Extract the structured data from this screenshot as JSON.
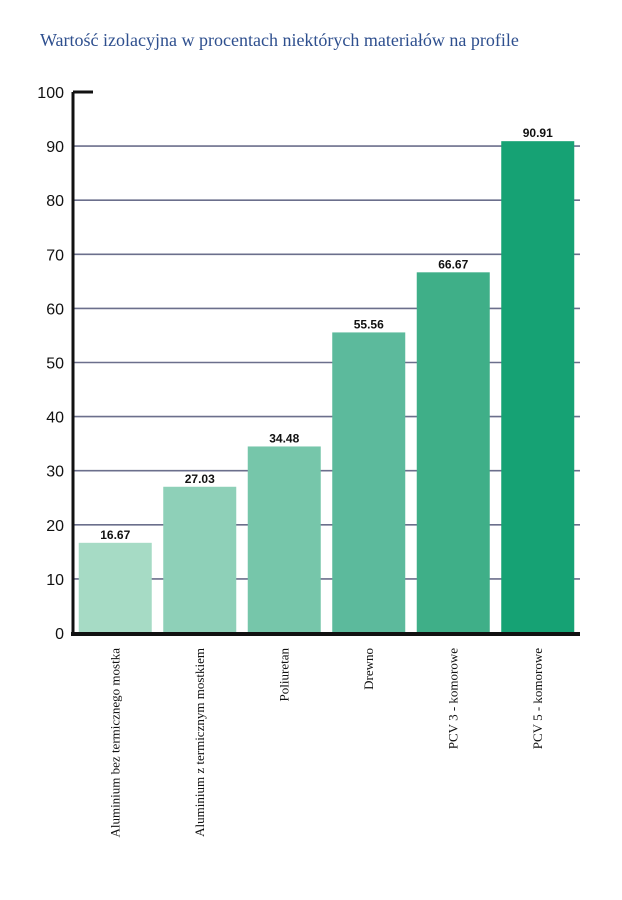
{
  "chart_data": {
    "type": "bar",
    "title": "Wartość izolacyjna w procentach niektórych materiałów na profile",
    "categories": [
      "Aluminium bez termicznego mostka",
      "Aluminium z termicznym mostkiem",
      "Poliuretan",
      "Drewno",
      "PCV 3 - komorowe",
      "PCV 5 - komorowe"
    ],
    "values": [
      16.67,
      27.03,
      34.48,
      55.56,
      66.67,
      90.91
    ],
    "value_labels": [
      "16.67",
      "27.03",
      "34.48",
      "55.56",
      "66.67",
      "90.91"
    ],
    "ylim": [
      0,
      100
    ],
    "yticks": [
      "0",
      "10",
      "20",
      "30",
      "40",
      "50",
      "60",
      "70",
      "80",
      "90",
      "100"
    ],
    "xlabel": "",
    "ylabel": "",
    "grid": true,
    "legend": "none",
    "colors": {
      "title": "#2e4f8e",
      "bars": [
        "#a6dbc5",
        "#8ed0b8",
        "#76c6aa",
        "#5cba9c",
        "#3faf88",
        "#16a274"
      ],
      "gridline": "#6b6f8c",
      "axis": "#111111"
    }
  }
}
